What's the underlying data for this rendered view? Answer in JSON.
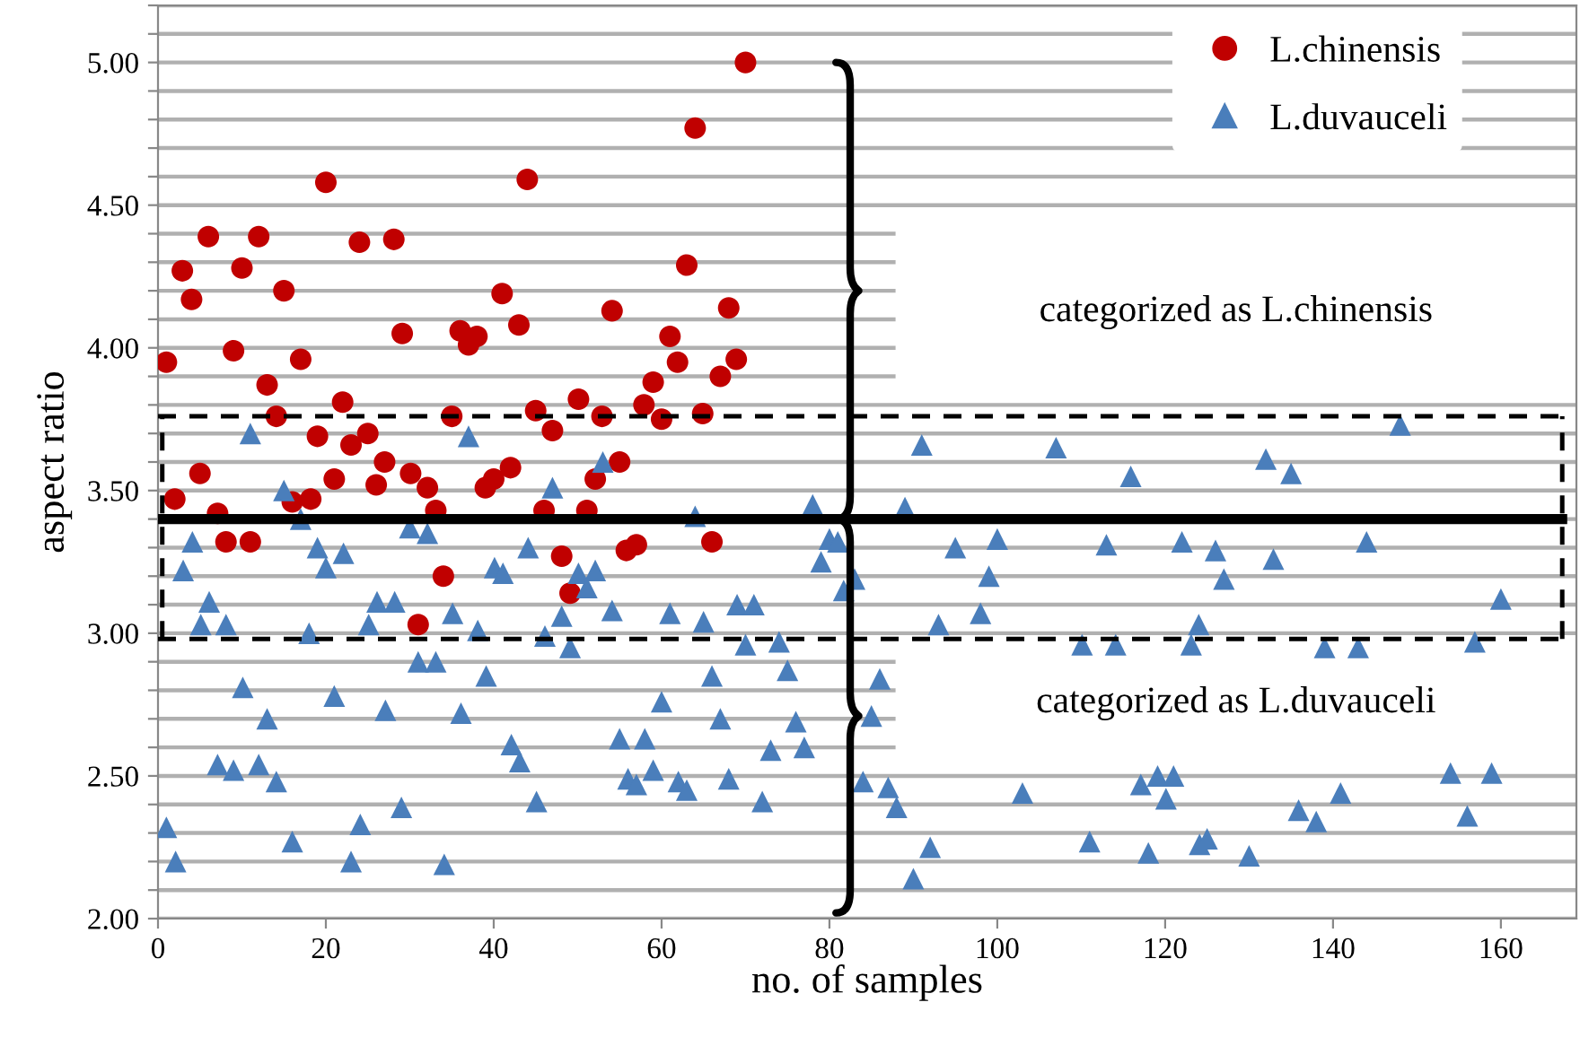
{
  "chart_data": {
    "type": "scatter",
    "xlabel": "no. of samples",
    "ylabel": "aspect ratio",
    "xlim": [
      0,
      169
    ],
    "xticks": [
      0,
      20,
      40,
      60,
      80,
      100,
      120,
      140,
      160
    ],
    "ylim": [
      2.0,
      5.2
    ],
    "yticks": [
      {
        "value": 2.0,
        "label": "2.00"
      },
      {
        "value": 2.1,
        "label": null
      },
      {
        "value": 2.2,
        "label": null
      },
      {
        "value": 2.3,
        "label": null
      },
      {
        "value": 2.4,
        "label": null
      },
      {
        "value": 2.5,
        "label": "2.50"
      },
      {
        "value": 2.6,
        "label": null
      },
      {
        "value": 2.7,
        "label": null
      },
      {
        "value": 2.8,
        "label": null
      },
      {
        "value": 2.9,
        "label": null
      },
      {
        "value": 3.0,
        "label": "3.00"
      },
      {
        "value": 3.1,
        "label": null
      },
      {
        "value": 3.2,
        "label": null
      },
      {
        "value": 3.3,
        "label": null
      },
      {
        "value": 3.4,
        "label": null
      },
      {
        "value": 3.5,
        "label": "3.50"
      },
      {
        "value": 3.6,
        "label": null
      },
      {
        "value": 3.7,
        "label": null
      },
      {
        "value": 3.8,
        "label": null
      },
      {
        "value": 3.9,
        "label": null
      },
      {
        "value": 4.0,
        "label": "4.00"
      },
      {
        "value": 4.1,
        "label": null
      },
      {
        "value": 4.2,
        "label": null
      },
      {
        "value": 4.3,
        "label": null
      },
      {
        "value": 4.4,
        "label": null
      },
      {
        "value": 4.5,
        "label": "4.50"
      },
      {
        "value": 4.6,
        "label": null
      },
      {
        "value": 4.7,
        "label": null
      },
      {
        "value": 4.8,
        "label": null
      },
      {
        "value": 4.9,
        "label": null
      },
      {
        "value": 5.0,
        "label": "5.00"
      },
      {
        "value": 5.1,
        "label": null
      },
      {
        "value": 5.2,
        "label": null
      }
    ],
    "grid": "y",
    "legend": "top right",
    "ref_lines": [
      {
        "axis": "y",
        "value": 3.4,
        "color": "#000000",
        "line_style": "solid"
      },
      {
        "axis": "y",
        "value": 3.76,
        "color": "#000000",
        "line_style": "dashed"
      },
      {
        "axis": "y",
        "value": 2.98,
        "color": "#000000",
        "line_style": "dashed"
      }
    ],
    "annotations": [
      "categorized as L.chinensis",
      "categorized as L.duvauceli"
    ],
    "series": [
      {
        "name": "L.chinensis",
        "color": "#c00000",
        "marker": "circle",
        "x": [
          1.0,
          2.0,
          2.9,
          4.0,
          5.0,
          6.0,
          7.1,
          8.1,
          9.0,
          10.0,
          11.0,
          12.0,
          13.0,
          14.1,
          15.0,
          16.0,
          17.0,
          18.2,
          19.0,
          20.0,
          21.0,
          22.0,
          23.0,
          24.0,
          25.0,
          26.0,
          27.0,
          28.1,
          29.1,
          30.1,
          31.0,
          32.1,
          33.1,
          34.0,
          35.0,
          36.0,
          37.0,
          38.0,
          39.0,
          40.0,
          41.0,
          42.0,
          43.0,
          44.0,
          45.0,
          46.0,
          47.0,
          48.1,
          49.1,
          50.1,
          51.1,
          52.1,
          52.9,
          54.1,
          55.0,
          55.8,
          57.0,
          57.9,
          59.0,
          60.0,
          61.0,
          61.9,
          63.0,
          64.0,
          64.9,
          66.0,
          67.0,
          68.0,
          68.9,
          70.0
        ],
        "values": [
          3.95,
          3.47,
          4.27,
          4.17,
          3.56,
          4.39,
          3.42,
          3.32,
          3.99,
          4.28,
          3.32,
          4.39,
          3.87,
          3.76,
          4.2,
          3.46,
          3.96,
          3.47,
          3.69,
          4.58,
          3.54,
          3.81,
          3.66,
          4.37,
          3.7,
          3.52,
          3.6,
          4.38,
          4.05,
          3.56,
          3.03,
          3.51,
          3.43,
          3.2,
          3.76,
          4.06,
          4.01,
          4.04,
          3.51,
          3.54,
          4.19,
          3.58,
          4.08,
          4.59,
          3.78,
          3.43,
          3.71,
          3.27,
          3.14,
          3.82,
          3.43,
          3.54,
          3.76,
          4.13,
          3.6,
          3.29,
          3.31,
          3.8,
          3.88,
          3.75,
          4.04,
          3.95,
          4.29,
          4.77,
          3.77,
          3.32,
          3.9,
          4.14,
          3.96,
          5.0
        ]
      },
      {
        "name": "L.duvauceli",
        "color": "#4a7ebb",
        "marker": "triangle",
        "x": [
          1.0,
          2.1,
          3.0,
          4.1,
          5.1,
          6.1,
          7.1,
          8.1,
          9.0,
          10.1,
          11.0,
          12.0,
          13.0,
          14.1,
          15.0,
          16.0,
          17.0,
          18.0,
          19.0,
          20.0,
          21.0,
          22.1,
          23.0,
          24.1,
          25.1,
          26.1,
          27.1,
          28.2,
          29.0,
          30.0,
          31.0,
          32.1,
          33.1,
          34.1,
          35.1,
          36.1,
          37.0,
          38.1,
          39.1,
          40.1,
          41.1,
          42.1,
          43.1,
          44.1,
          45.1,
          46.1,
          47.0,
          48.1,
          49.1,
          50.1,
          51.1,
          52.1,
          53.0,
          54.1,
          55.0,
          56.0,
          57.0,
          58.0,
          59.0,
          60.0,
          61.0,
          62.0,
          63.0,
          64.0,
          65.0,
          66.0,
          67.0,
          68.0,
          69.0,
          70.0,
          71.0,
          72.0,
          73.0,
          74.0,
          75.0,
          76.0,
          77.0,
          78.0,
          79.0,
          80.0,
          81.0,
          81.7,
          83.0,
          84.0,
          85.0,
          86.0,
          87.0,
          88.0,
          89.0,
          90.0,
          91.0,
          92.0,
          93.0,
          95.0,
          98.0,
          99.0,
          100.0,
          103.0,
          107.0,
          110.1,
          111.0,
          113.0,
          114.1,
          115.9,
          117.1,
          118.0,
          119.1,
          120.1,
          121.0,
          122.0,
          123.1,
          124.0,
          124.1,
          125.0,
          126.0,
          127.0,
          130.0,
          132.0,
          132.9,
          135.0,
          135.9,
          138.0,
          139.0,
          140.9,
          143.0,
          144.0,
          148.0,
          154.0,
          156.0,
          156.9,
          158.9,
          160.0
        ],
        "values": [
          2.32,
          2.2,
          3.22,
          3.32,
          3.03,
          3.11,
          2.54,
          3.03,
          2.52,
          2.81,
          3.7,
          2.54,
          2.7,
          2.48,
          3.5,
          2.27,
          3.4,
          3.0,
          3.3,
          3.23,
          2.78,
          3.28,
          2.2,
          2.33,
          3.03,
          3.11,
          2.73,
          3.11,
          2.39,
          3.37,
          2.9,
          3.35,
          2.9,
          2.19,
          3.07,
          2.72,
          3.69,
          3.01,
          2.85,
          3.23,
          3.21,
          2.61,
          2.55,
          3.3,
          2.41,
          2.99,
          3.51,
          3.06,
          2.95,
          3.21,
          3.16,
          3.22,
          3.6,
          3.08,
          2.63,
          2.49,
          2.47,
          2.63,
          2.52,
          2.76,
          3.07,
          2.48,
          2.45,
          3.41,
          3.04,
          2.85,
          2.7,
          2.49,
          3.1,
          2.96,
          3.1,
          2.41,
          2.59,
          2.97,
          2.87,
          2.69,
          2.6,
          3.45,
          3.25,
          3.33,
          3.32,
          3.15,
          3.19,
          2.48,
          2.71,
          2.84,
          2.46,
          2.39,
          3.44,
          2.14,
          3.66,
          2.25,
          3.03,
          3.3,
          3.07,
          3.2,
          3.33,
          2.44,
          3.65,
          2.96,
          2.27,
          3.31,
          2.96,
          3.55,
          2.47,
          2.23,
          2.5,
          2.42,
          2.5,
          3.32,
          2.96,
          3.03,
          2.26,
          2.28,
          3.29,
          3.19,
          2.22,
          3.61,
          3.26,
          3.56,
          2.38,
          2.34,
          2.95,
          2.44,
          2.95,
          3.32,
          3.73,
          2.51,
          2.36,
          2.97,
          2.51,
          3.12
        ]
      }
    ]
  }
}
